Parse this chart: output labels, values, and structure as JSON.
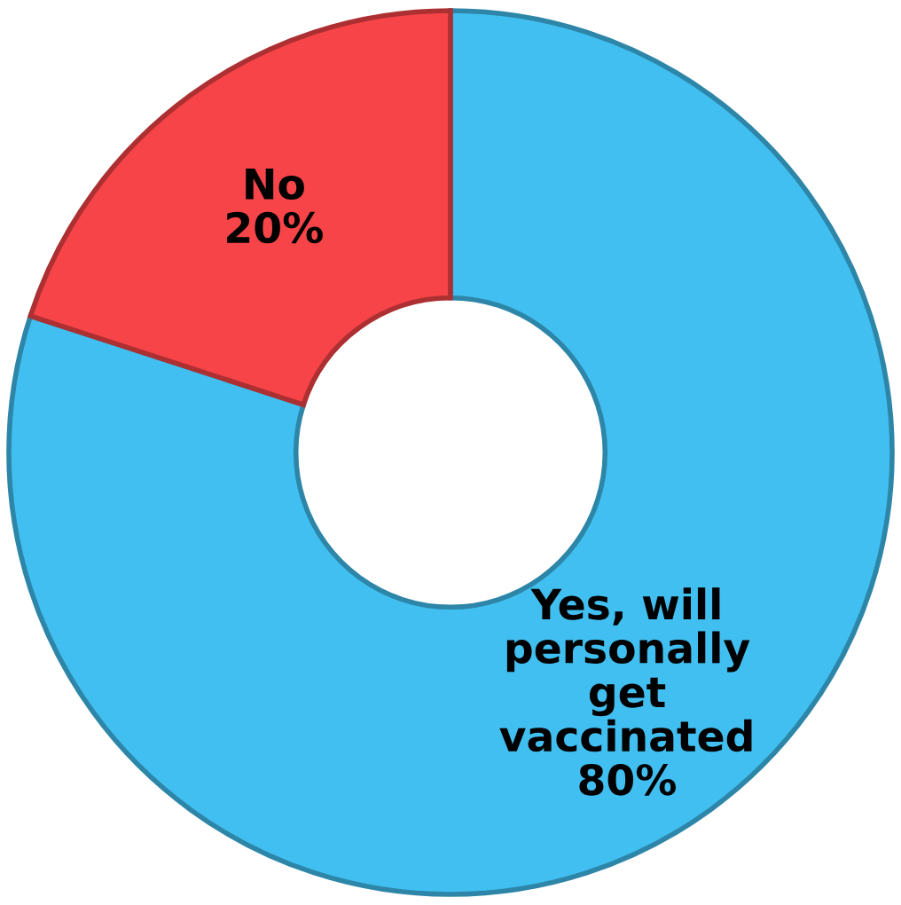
{
  "chart_data": {
    "type": "donut",
    "categories": [
      "Yes, will\npersonally\nget\nvaccinated",
      "No"
    ],
    "values": [
      80,
      20
    ],
    "value_labels": [
      "80%",
      "20%"
    ],
    "colors": [
      "#41bff0",
      "#f64448"
    ]
  }
}
